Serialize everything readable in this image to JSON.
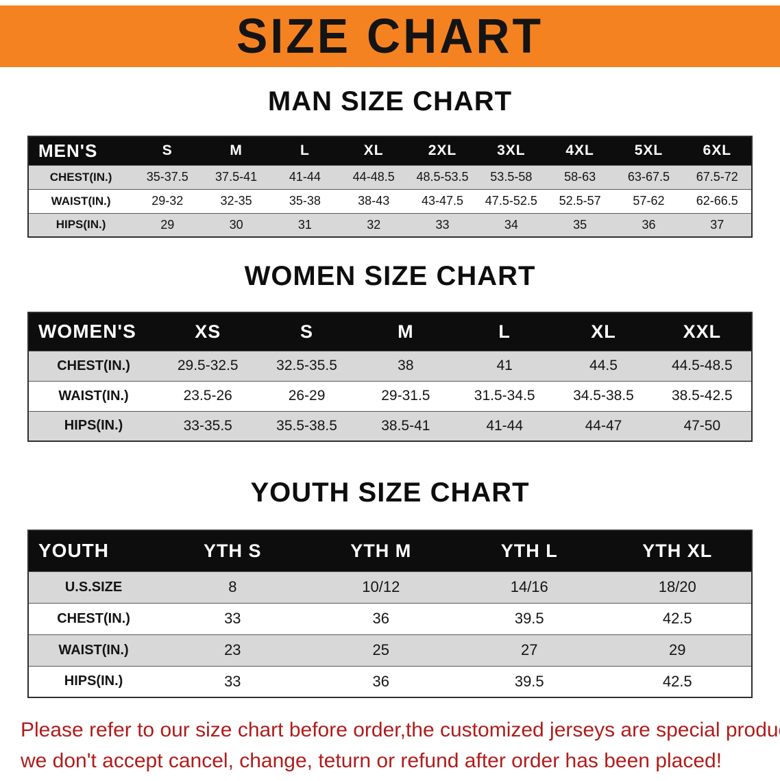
{
  "banner": {
    "title": "SIZE CHART"
  },
  "colors": {
    "banner_bg": "#f58220",
    "header_row_bg": "#0d0d0d",
    "alt_row_bg": "#d8d8d8",
    "footer_text": "#b01c1c"
  },
  "sections": [
    {
      "heading": "MAN SIZE CHART",
      "table": {
        "header": [
          "MEN'S",
          "S",
          "M",
          "L",
          "XL",
          "2XL",
          "3XL",
          "4XL",
          "5XL",
          "6XL"
        ],
        "rows": [
          [
            "CHEST(IN.)",
            "35-37.5",
            "37.5-41",
            "41-44",
            "44-48.5",
            "48.5-53.5",
            "53.5-58",
            "58-63",
            "63-67.5",
            "67.5-72"
          ],
          [
            "WAIST(IN.)",
            "29-32",
            "32-35",
            "35-38",
            "38-43",
            "43-47.5",
            "47.5-52.5",
            "52.5-57",
            "57-62",
            "62-66.5"
          ],
          [
            "HIPS(IN.)",
            "29",
            "30",
            "31",
            "32",
            "33",
            "34",
            "35",
            "36",
            "37"
          ]
        ]
      }
    },
    {
      "heading": "WOMEN SIZE CHART",
      "table": {
        "header": [
          "WOMEN'S",
          "XS",
          "S",
          "M",
          "L",
          "XL",
          "XXL"
        ],
        "rows": [
          [
            "CHEST(IN.)",
            "29.5-32.5",
            "32.5-35.5",
            "38",
            "41",
            "44.5",
            "44.5-48.5"
          ],
          [
            "WAIST(IN.)",
            "23.5-26",
            "26-29",
            "29-31.5",
            "31.5-34.5",
            "34.5-38.5",
            "38.5-42.5"
          ],
          [
            "HIPS(IN.)",
            "33-35.5",
            "35.5-38.5",
            "38.5-41",
            "41-44",
            "44-47",
            "47-50"
          ]
        ]
      }
    },
    {
      "heading": "YOUTH SIZE CHART",
      "table": {
        "header": [
          "YOUTH",
          "YTH S",
          "YTH M",
          "YTH L",
          "YTH XL"
        ],
        "rows": [
          [
            "U.S.SIZE",
            "8",
            "10/12",
            "14/16",
            "18/20"
          ],
          [
            "CHEST(IN.)",
            "33",
            "36",
            "39.5",
            "42.5"
          ],
          [
            "WAIST(IN.)",
            "23",
            "25",
            "27",
            "29"
          ],
          [
            "HIPS(IN.)",
            "33",
            "36",
            "39.5",
            "42.5"
          ]
        ]
      }
    }
  ],
  "footer": {
    "line1": "Please refer to our size chart before order,the customized jerseys are special products,",
    "line2": "we don't accept cancel, change, teturn or refund after order has been placed!"
  }
}
